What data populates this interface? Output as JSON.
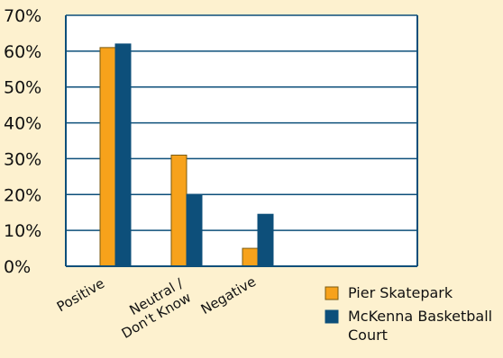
{
  "chart_data": {
    "type": "bar",
    "title": "",
    "xlabel": "",
    "ylabel": "",
    "categories": [
      [
        "Positive"
      ],
      [
        "Neutral /",
        "Don't Know"
      ],
      [
        "Negative"
      ]
    ],
    "y_ticks": [
      "0%",
      "10%",
      "20%",
      "30%",
      "40%",
      "50%",
      "60%",
      "70%"
    ],
    "ylim": [
      0,
      70
    ],
    "grid": true,
    "legend_position": "bottom-right",
    "series": [
      {
        "name": "Pier Skatepark",
        "color": "#f7a21b",
        "values": [
          61,
          31,
          5
        ]
      },
      {
        "name": [
          "McKenna Basketball",
          "Court"
        ],
        "color": "#0d4f7a",
        "values": [
          62,
          20,
          14.5
        ]
      }
    ]
  },
  "colors": {
    "background": "#fdf1cf",
    "plot_background": "#ffffff",
    "axis": "#0d4f7a",
    "bar_outline": "#7a5a10"
  }
}
